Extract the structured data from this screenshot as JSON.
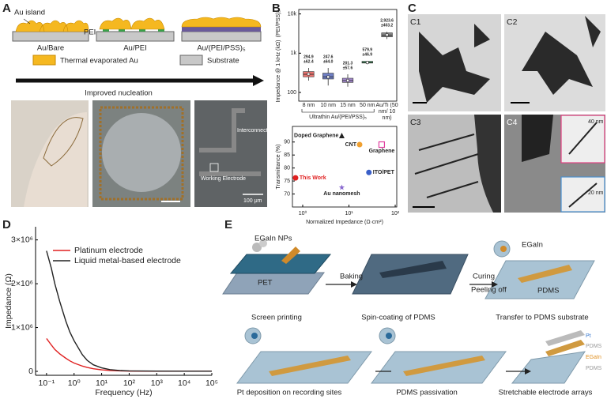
{
  "panel_labels": [
    "A",
    "B",
    "C",
    "D",
    "E"
  ],
  "panel_a": {
    "au_island": "Au island",
    "pei": "PEI",
    "au_bare": "Au/Bare",
    "au_pei": "Au/PEI",
    "au_pss": "Au/(PEI/PSS)₅",
    "legend_au": "Thermal evaporated Au",
    "legend_substrate": "Substrate",
    "arrow": "Improved nucleation",
    "photo_interconnect": "Interconnect Line",
    "photo_working": "Working Electrode",
    "photo_scale": "100 μm"
  },
  "panel_c": {
    "subpanels": [
      "C1",
      "C2",
      "C3",
      "C4"
    ],
    "scale_top": "40 nm",
    "scale_bottom": "20 nm"
  },
  "panel_e": {
    "egain_nps": "EGaIn NPs",
    "pet": "PET",
    "baking": "Baking",
    "curing": "Curing",
    "peeling_off": "Peeling off",
    "egain": "EGaIn",
    "pdms": "PDMS",
    "screen_printing": "Screen printing",
    "spin_coating": "Spin-coating of PDMS",
    "transfer": "Transfer to PDMS substrate",
    "layer_labels": [
      "Pt",
      "PDMS",
      "EGaIn",
      "PDMS"
    ],
    "pt_deposition": "Pt deposition on recording sites",
    "passivation": "PDMS passivation",
    "stretchable": "Stretchable electrode arrays"
  },
  "chart_data": [
    {
      "type": "box",
      "y_label": "Impedance @ 1 kHz (kΩ)",
      "side_label": "(PEI/PSS)₅",
      "x_label": "Ultrathin Au/(PEI/PSS)₅",
      "categories": [
        "8 nm",
        "10 nm",
        "15 nm",
        "50 nm",
        "Au/Ti (50 nm/ 10 nm)"
      ],
      "log_y": true,
      "ylim": [
        60,
        13000
      ],
      "yticks": [
        100,
        {
          "value": 1000,
          "label": "1k"
        },
        {
          "value": 10000,
          "label": "10k"
        }
      ],
      "colors": [
        "#e8736f",
        "#6f7fc4",
        "#a58ad0",
        "#3fb36b",
        "#888888"
      ],
      "values": [
        294.9,
        247.6,
        201.3,
        579.9,
        2923.6
      ],
      "value_labels": [
        "294.9",
        "247.6",
        "201.3",
        "579.9",
        "2,923.6"
      ],
      "errors": [
        62.4,
        64.0,
        57.6,
        46.9,
        403.2
      ],
      "error_labels": [
        "±62.4",
        "±64.0",
        "±57.6",
        "±46.9",
        "±403.2"
      ],
      "q1": [
        250,
        220,
        180,
        560,
        2600
      ],
      "medians": [
        290,
        250,
        200,
        580,
        2900
      ],
      "q3": [
        340,
        310,
        230,
        620,
        3300
      ],
      "whisker_low": [
        200,
        150,
        140,
        520,
        2300
      ],
      "whisker_high": [
        420,
        420,
        290,
        640,
        3500
      ]
    },
    {
      "type": "scatter",
      "y_label": "Transmittance (%)",
      "x_label": "Normalized Impedance (Ω·cm²)",
      "log_x": true,
      "xlim": [
        0.6,
        108
      ],
      "xticks": [
        {
          "value": 1,
          "label": "10⁰"
        },
        {
          "value": 10,
          "label": "10¹"
        },
        {
          "value": 100,
          "label": "10²"
        }
      ],
      "ylim": [
        65,
        96
      ],
      "yticks": [
        70,
        75,
        80,
        85,
        90
      ],
      "names": [
        "Doped Graphene",
        "CNT",
        "Graphene",
        "ITO/PET",
        "This Work",
        "Au nanomesh"
      ],
      "x": [
        7,
        17,
        51,
        27,
        0.7,
        7
      ],
      "values": [
        92.5,
        89,
        89,
        78.3,
        76.2,
        72.5
      ],
      "colors": [
        "#222222",
        "#f0a030",
        "#e040a0",
        "#3a5fc8",
        "#e02020",
        "#8a6ad0"
      ],
      "markers": [
        "triangle",
        "circle",
        "square",
        "circle",
        "circle",
        "star"
      ],
      "label_colors": [
        "#222222",
        "#222222",
        "#222222",
        "#222222",
        "#e02020",
        "#222222"
      ]
    },
    {
      "type": "line",
      "y_label": "Impedance (Ω)",
      "x_label": "Frequency (Hz)",
      "log_x": true,
      "xlim": [
        0.04,
        100000
      ],
      "xticks": [
        {
          "value": 0.1,
          "label": "10⁻¹"
        },
        {
          "value": 1,
          "label": "10⁰"
        },
        {
          "value": 10,
          "label": "10¹"
        },
        {
          "value": 100,
          "label": "10²"
        },
        {
          "value": 1000,
          "label": "10³"
        },
        {
          "value": 10000,
          "label": "10⁴"
        },
        {
          "value": 100000,
          "label": "10⁵"
        }
      ],
      "ylim": [
        -90000,
        3300000
      ],
      "yticks": [
        0,
        {
          "value": 1000000,
          "label": "1×10⁶"
        },
        {
          "value": 2000000,
          "label": "2×10⁶"
        },
        {
          "value": 3000000,
          "label": "3×10⁶"
        }
      ],
      "x": [
        0.1,
        0.15,
        0.2,
        0.3,
        0.5,
        0.7,
        1,
        2,
        3,
        5,
        10,
        20,
        50,
        100,
        1000,
        10000,
        100000
      ],
      "series": [
        {
          "name": "Platinum electrode",
          "color": "#e02020",
          "values": [
            750000,
            600000,
            500000,
            400000,
            300000,
            240000,
            190000,
            120000,
            90000,
            60000,
            35000,
            20000,
            10000,
            7000,
            4000,
            3000,
            3000
          ]
        },
        {
          "name": "Liquid metal-based electrode",
          "color": "#222222",
          "values": [
            2750000,
            2350000,
            2000000,
            1600000,
            1150000,
            900000,
            700000,
            380000,
            250000,
            150000,
            80000,
            40000,
            18000,
            10000,
            5000,
            3500,
            3000
          ]
        }
      ]
    }
  ]
}
